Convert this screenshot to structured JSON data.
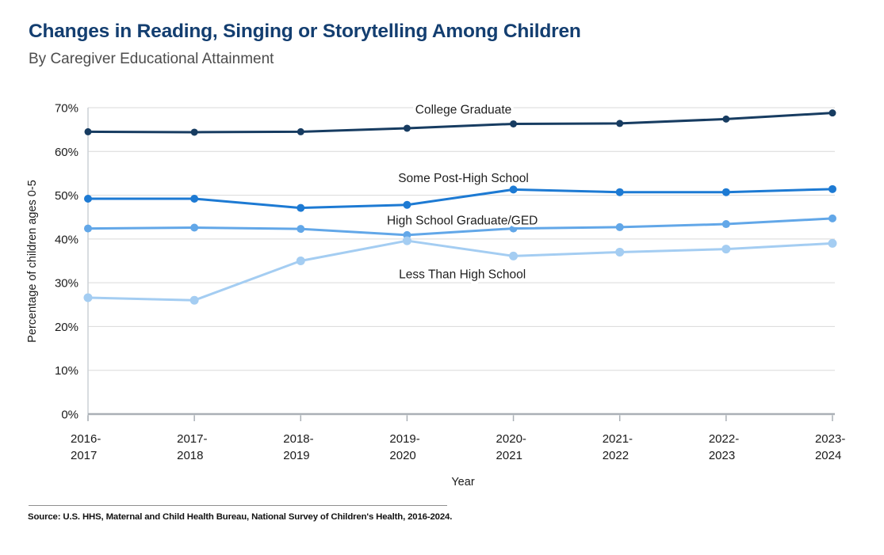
{
  "header": {
    "title": "Changes in Reading, Singing or Storytelling Among Children",
    "subtitle": "By Caregiver Educational Attainment"
  },
  "chart_data": {
    "type": "line",
    "title": "Changes in Reading, Singing or Storytelling Among Children",
    "subtitle": "By Caregiver Educational Attainment",
    "xlabel": "Year",
    "ylabel": "Percentage of children ages 0-5",
    "ylim": [
      0,
      70
    ],
    "y_tick_labels": [
      "0%",
      "10%",
      "20%",
      "30%",
      "40%",
      "50%",
      "60%",
      "70%"
    ],
    "grid": "horizontal",
    "legend": "inline-labels",
    "categories": [
      {
        "top": "2016-",
        "bottom": "2017"
      },
      {
        "top": "2017-",
        "bottom": "2018"
      },
      {
        "top": "2018-",
        "bottom": "2019"
      },
      {
        "top": "2019-",
        "bottom": "2020"
      },
      {
        "top": "2020-",
        "bottom": "2021"
      },
      {
        "top": "2021-",
        "bottom": "2022"
      },
      {
        "top": "2022-",
        "bottom": "2023"
      },
      {
        "top": "2023-",
        "bottom": "2024"
      }
    ],
    "series": [
      {
        "name": "College Graduate",
        "color": "#173c61",
        "point_radius": 4.5,
        "values": [
          64.5,
          64.4,
          64.5,
          65.3,
          66.3,
          66.4,
          67.4,
          68.8
        ],
        "label": {
          "xi": 3.53,
          "val": 69.6
        }
      },
      {
        "name": "Some Post-High School",
        "color": "#1d7ad3",
        "point_radius": 5,
        "values": [
          49.2,
          49.2,
          47.1,
          47.8,
          51.3,
          50.7,
          50.7,
          51.4
        ],
        "label": {
          "xi": 3.53,
          "val": 54.0
        }
      },
      {
        "name": "High School Graduate/GED",
        "color": "#62a7e8",
        "point_radius": 5,
        "values": [
          42.4,
          42.6,
          42.3,
          40.9,
          42.4,
          42.7,
          43.4,
          44.7
        ],
        "label": {
          "xi": 3.52,
          "val": 44.3
        }
      },
      {
        "name": "Less Than High School",
        "color": "#a4cdf2",
        "point_radius": 5.5,
        "values": [
          26.6,
          26.0,
          35.0,
          39.6,
          36.1,
          37.0,
          37.7,
          39.0
        ],
        "label": {
          "xi": 3.52,
          "val": 32.0
        }
      }
    ],
    "colors": {
      "grid": "#d9d9d9",
      "axis": "#aab0b6",
      "y_axis_line": "#ccd1d6",
      "tick_text": "#1a1a1a",
      "label_text": "#1f1f1f"
    }
  },
  "footer": {
    "source": "Source: U.S. HHS, Maternal and Child Health Bureau, National Survey of Children's Health, 2016-2024."
  },
  "colors": {
    "title": "#133e70",
    "subtitle": "#4d4d4d"
  }
}
